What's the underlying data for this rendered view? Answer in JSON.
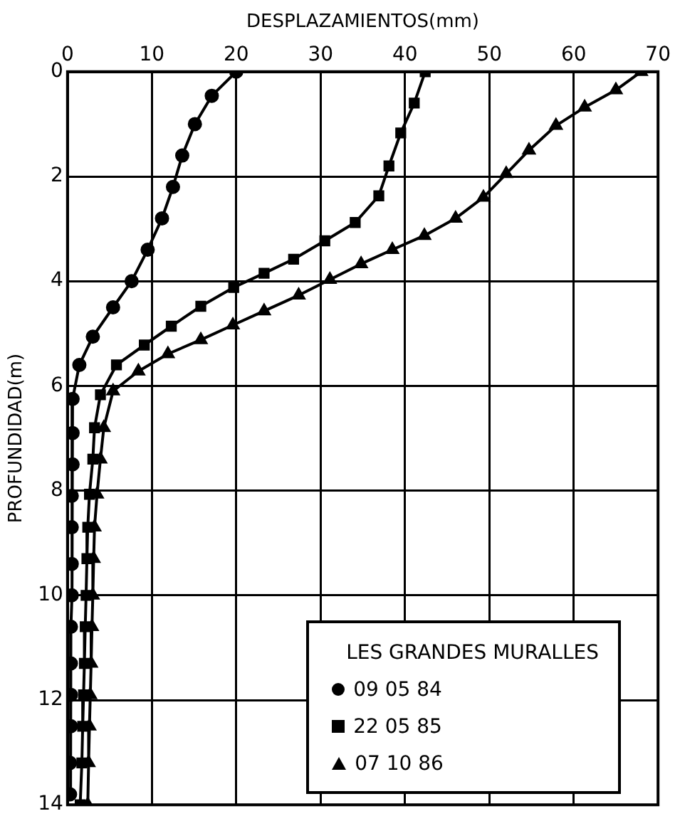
{
  "chart_data": {
    "type": "line",
    "xlabel": "DESPLAZAMIENTOS(mm)",
    "ylabel": "PROFUNDIDAD(m)",
    "legend_title": "LES GRANDES MURALLES",
    "xlim": [
      0,
      70
    ],
    "xticks": [
      0,
      10,
      20,
      30,
      40,
      50,
      60,
      70
    ],
    "ylim": [
      14,
      0
    ],
    "yticks": [
      0,
      2,
      4,
      6,
      8,
      10,
      12,
      14
    ],
    "grid": true,
    "legend": "bottom right",
    "line_style": "solid",
    "series": [
      {
        "name": "09 05 84",
        "color": "#000000",
        "marker": "circle",
        "x": [
          20,
          17.1,
          15.1,
          13.6,
          12.5,
          11.2,
          9.5,
          7.6,
          5.4,
          3.0,
          1.4,
          0.6,
          0.6,
          0.6,
          0.5,
          0.5,
          0.5,
          0.5,
          0.4,
          0.4,
          0.4,
          0.4,
          0.3,
          0.3
        ],
        "values": [
          0,
          0.46,
          1.0,
          1.6,
          2.2,
          2.8,
          3.4,
          4.0,
          4.5,
          5.06,
          5.6,
          6.25,
          6.9,
          7.5,
          8.1,
          8.7,
          9.4,
          10.0,
          10.6,
          11.3,
          11.9,
          12.5,
          13.2,
          13.8
        ]
      },
      {
        "name": "22 05 85",
        "color": "#000000",
        "marker": "square",
        "x": [
          42.4,
          41.1,
          39.5,
          38.1,
          36.9,
          34.1,
          30.5,
          26.8,
          23.3,
          19.7,
          15.8,
          12.3,
          9.1,
          5.8,
          3.9,
          3.2,
          3.0,
          2.6,
          2.4,
          2.3,
          2.2,
          2.1,
          2.0,
          1.9,
          1.8,
          1.7,
          1.5
        ],
        "values": [
          0,
          0.6,
          1.17,
          1.8,
          2.37,
          2.88,
          3.23,
          3.58,
          3.85,
          4.12,
          4.48,
          4.86,
          5.22,
          5.6,
          6.17,
          6.8,
          7.4,
          8.07,
          8.7,
          9.3,
          10.0,
          10.6,
          11.3,
          11.9,
          12.5,
          13.2,
          14
        ]
      },
      {
        "name": "07 10 86",
        "color": "#000000",
        "marker": "triangle",
        "x": [
          68.0,
          65.0,
          61.3,
          57.9,
          54.7,
          52.0,
          49.3,
          46.0,
          42.3,
          38.5,
          34.8,
          31.1,
          27.4,
          23.3,
          19.6,
          15.8,
          11.9,
          8.4,
          5.4,
          4.3,
          3.9,
          3.5,
          3.2,
          3.1,
          3.0,
          2.9,
          2.8,
          2.7,
          2.6,
          2.5,
          2.4
        ],
        "values": [
          0,
          0.35,
          0.68,
          1.03,
          1.5,
          1.95,
          2.4,
          2.8,
          3.13,
          3.4,
          3.67,
          3.97,
          4.27,
          4.57,
          4.84,
          5.12,
          5.39,
          5.72,
          6.1,
          6.8,
          7.4,
          8.07,
          8.7,
          9.3,
          10.0,
          10.6,
          11.3,
          11.9,
          12.5,
          13.2,
          14
        ]
      }
    ]
  }
}
